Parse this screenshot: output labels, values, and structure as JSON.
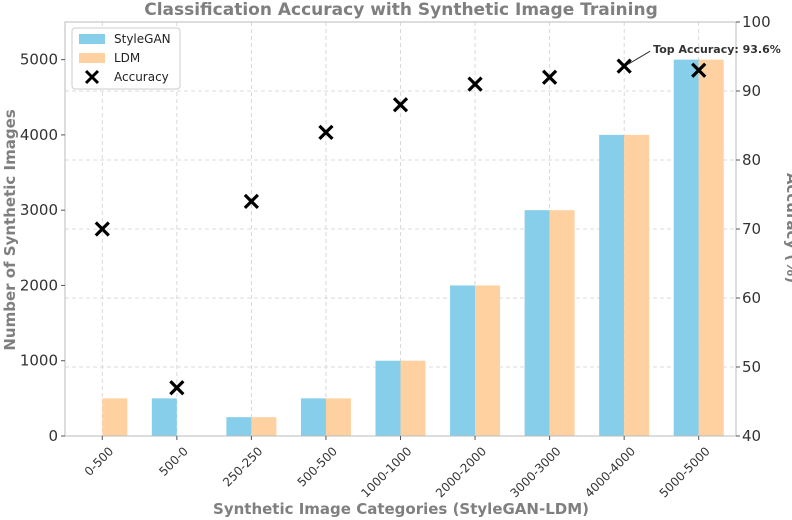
{
  "chart_data": {
    "type": "bar",
    "title": "Classification Accuracy with Synthetic Image Training",
    "xlabel": "Synthetic Image Categories (StyleGAN-LDM)",
    "ylabel": "Number of Synthetic Images",
    "ylabel_right": "Accuracy (%)",
    "categories": [
      "0-500",
      "500-0",
      "250-250",
      "500-500",
      "1000-1000",
      "2000-2000",
      "3000-3000",
      "4000-4000",
      "5000-5000"
    ],
    "series": [
      {
        "name": "StyleGAN",
        "type": "bar",
        "axis": "left",
        "color": "#87ceeb",
        "values": [
          0,
          500,
          250,
          500,
          1000,
          2000,
          3000,
          4000,
          5000
        ]
      },
      {
        "name": "LDM",
        "type": "bar",
        "axis": "left",
        "color": "#ffd1a0",
        "values": [
          500,
          0,
          250,
          500,
          1000,
          2000,
          3000,
          4000,
          5000
        ]
      },
      {
        "name": "Accuracy",
        "type": "scatter",
        "axis": "right",
        "marker": "x",
        "color": "#000000",
        "values": [
          70.0,
          47.0,
          74.0,
          84.0,
          88.0,
          91.0,
          92.0,
          93.6,
          93.0
        ]
      }
    ],
    "ylim": [
      0,
      5500
    ],
    "yticks": [
      0,
      1000,
      2000,
      3000,
      4000,
      5000
    ],
    "ylim_right": [
      40,
      100
    ],
    "yticks_right": [
      40,
      50,
      60,
      70,
      80,
      90,
      100
    ],
    "grid": true,
    "legend_position": "top-left",
    "annotation": {
      "text": "Top Accuracy: 93.6%",
      "category": "4000-4000",
      "value": 93.6
    }
  }
}
